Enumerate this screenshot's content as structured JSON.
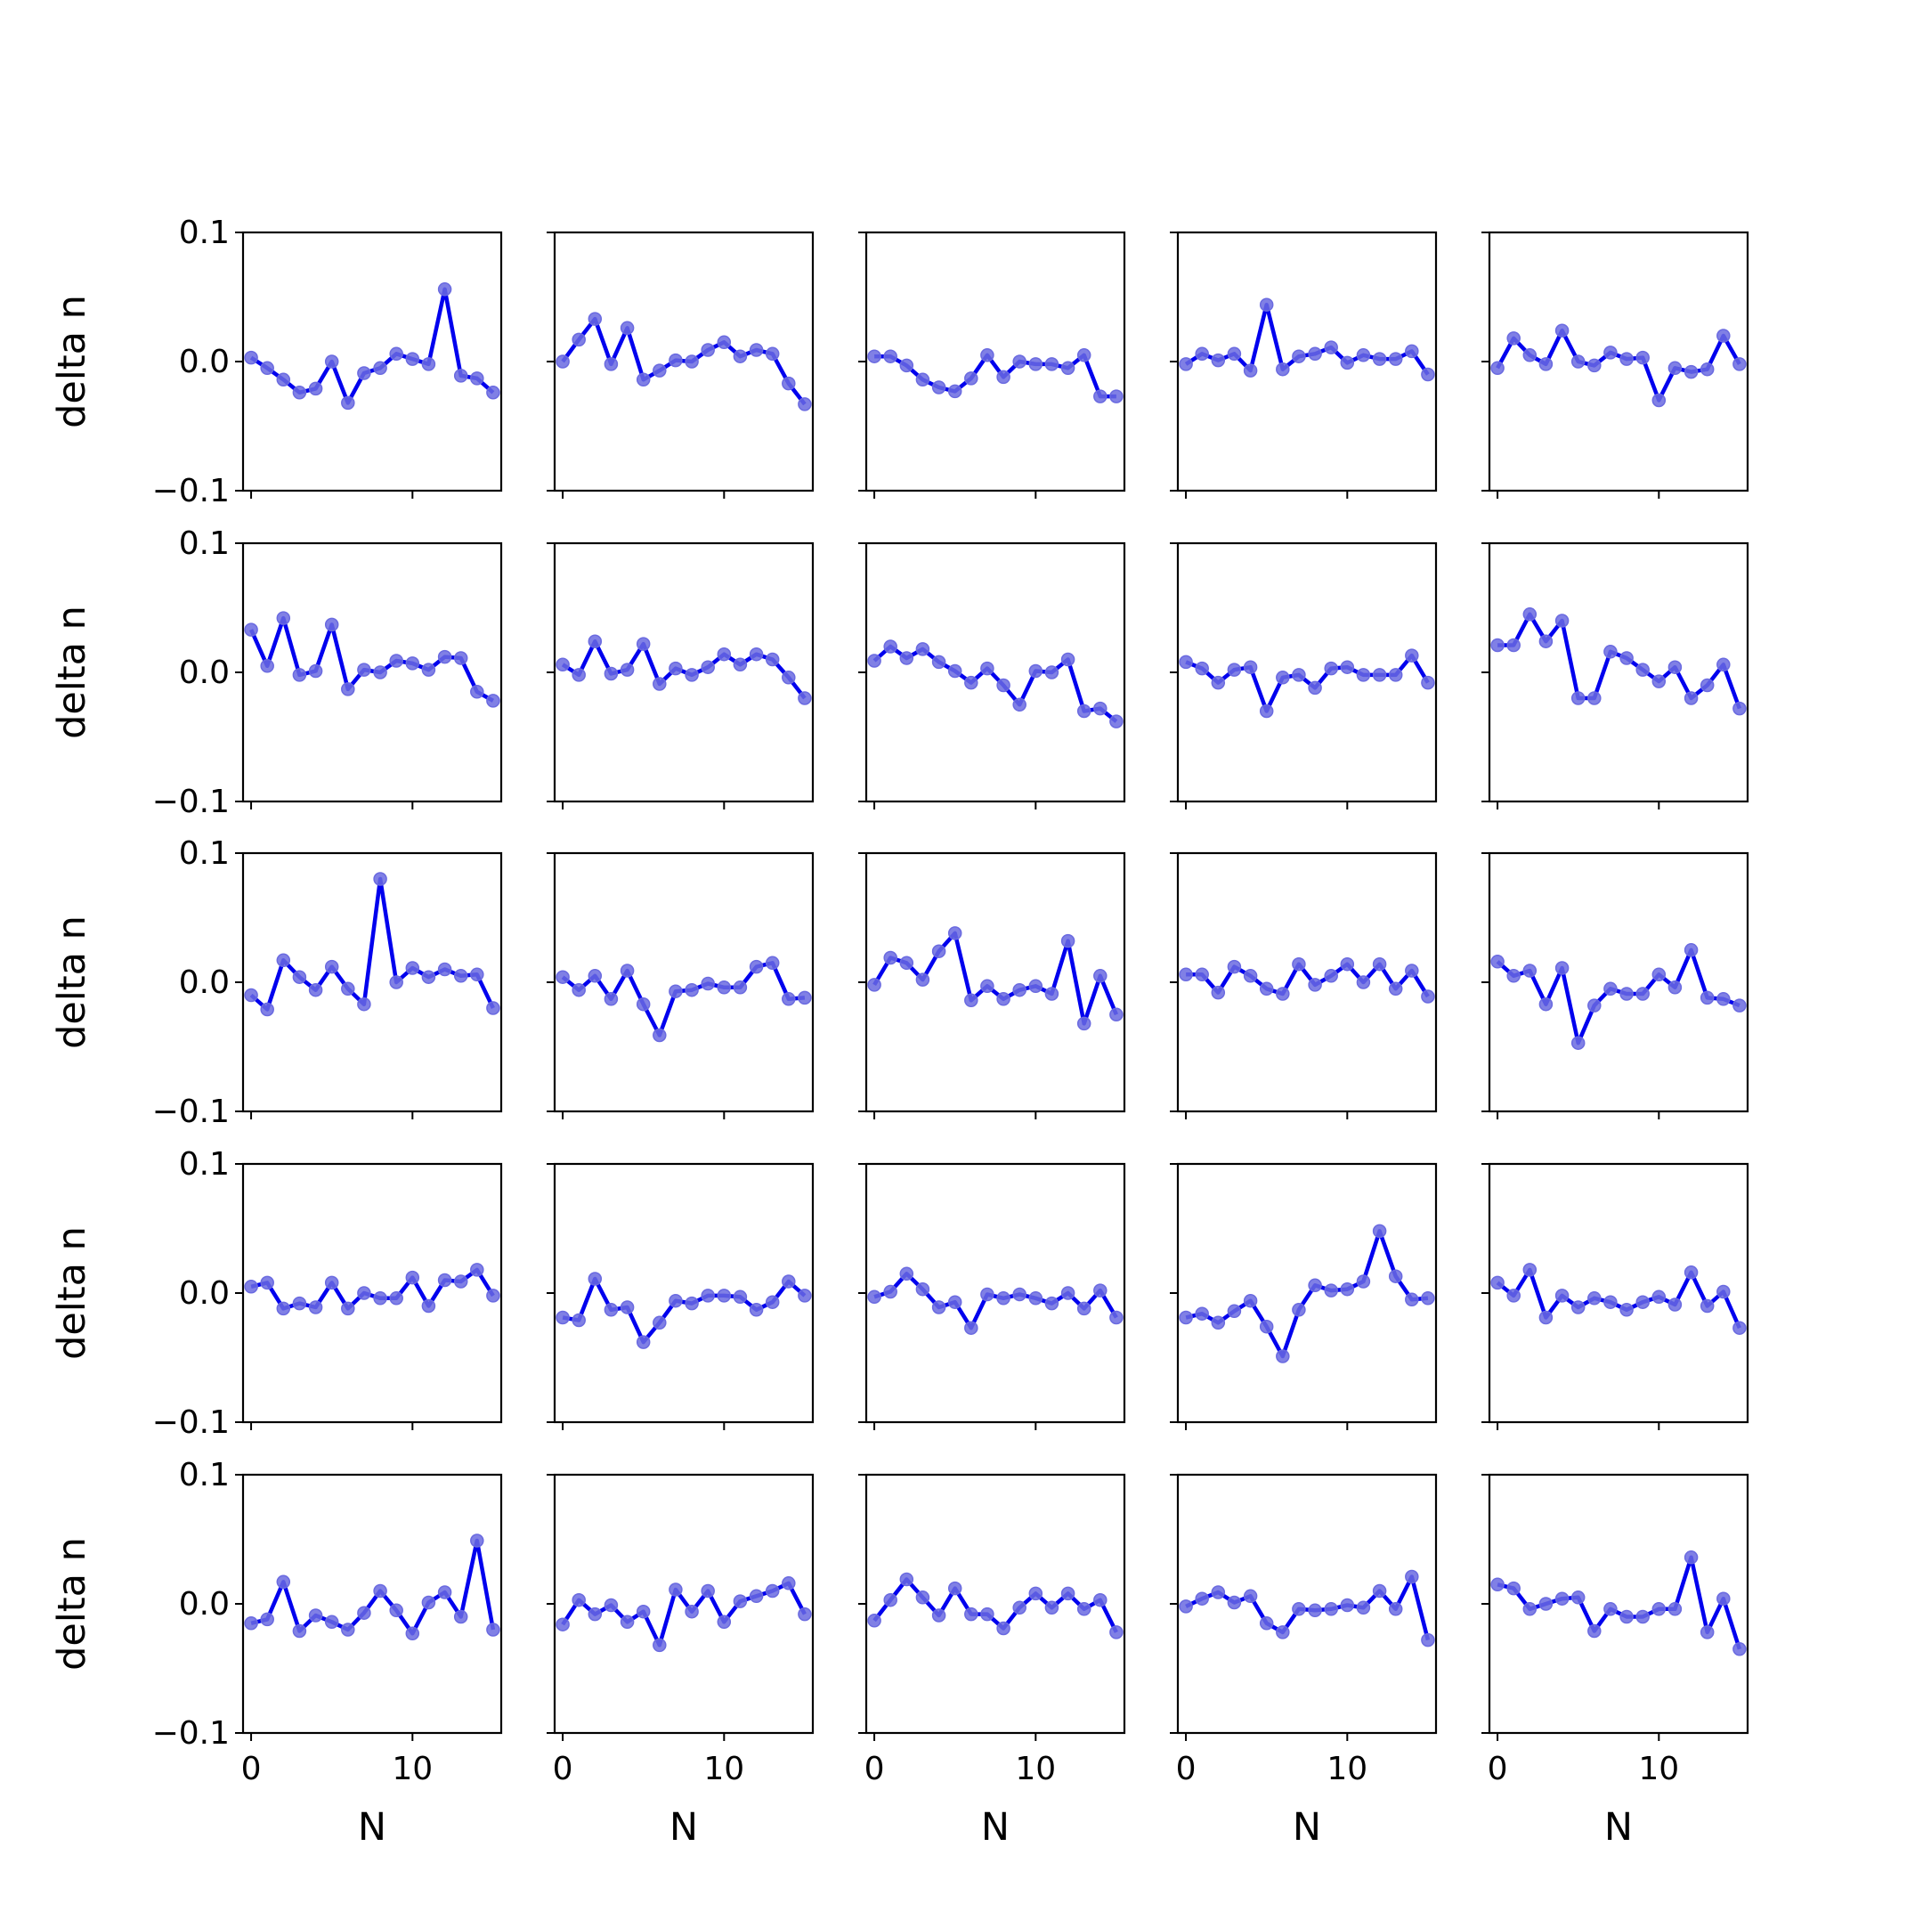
{
  "chart_data": {
    "type": "line",
    "layout": "5x5 grid of small multiples",
    "xlabel": "N",
    "ylabel": "delta n",
    "ylim": [
      -0.1,
      0.1
    ],
    "yticks": [
      -0.1,
      0.0,
      0.1
    ],
    "ytick_labels": [
      "−0.1",
      "0.0",
      "0.1"
    ],
    "xlim": [
      -0.5,
      15.5
    ],
    "xticks": [
      0,
      10
    ],
    "xtick_labels": [
      "0",
      "10"
    ],
    "x": [
      0,
      1,
      2,
      3,
      4,
      5,
      6,
      7,
      8,
      9,
      10,
      11,
      12,
      13,
      14,
      15
    ],
    "grid": false,
    "legend": "none",
    "colors": {
      "line": "#0000ee",
      "marker": "#6a6ae0"
    },
    "panels": [
      [
        0.003,
        -0.005,
        -0.014,
        -0.024,
        -0.021,
        0.0,
        -0.032,
        -0.009,
        -0.005,
        0.006,
        0.002,
        -0.002,
        0.056,
        -0.011,
        -0.013,
        -0.024
      ],
      [
        0.0,
        0.017,
        0.033,
        -0.002,
        0.026,
        -0.014,
        -0.007,
        0.001,
        0.0,
        0.009,
        0.015,
        0.004,
        0.009,
        0.006,
        -0.017,
        -0.033
      ],
      [
        0.004,
        0.004,
        -0.003,
        -0.014,
        -0.02,
        -0.023,
        -0.013,
        0.005,
        -0.012,
        0.0,
        -0.002,
        -0.002,
        -0.005,
        0.005,
        -0.027,
        -0.027
      ],
      [
        -0.002,
        0.006,
        0.001,
        0.006,
        -0.007,
        0.044,
        -0.006,
        0.004,
        0.006,
        0.011,
        -0.001,
        0.005,
        0.002,
        0.002,
        0.008,
        -0.01
      ],
      [
        -0.005,
        0.018,
        0.005,
        -0.002,
        0.024,
        0.0,
        -0.003,
        0.007,
        0.002,
        0.003,
        -0.03,
        -0.005,
        -0.008,
        -0.006,
        0.02,
        -0.002
      ],
      [
        0.033,
        0.005,
        0.042,
        -0.002,
        0.001,
        0.037,
        -0.013,
        0.002,
        0.0,
        0.009,
        0.007,
        0.002,
        0.012,
        0.011,
        -0.015,
        -0.022
      ],
      [
        0.006,
        -0.002,
        0.024,
        -0.001,
        0.002,
        0.022,
        -0.009,
        0.003,
        -0.002,
        0.004,
        0.014,
        0.006,
        0.014,
        0.01,
        -0.004,
        -0.02
      ],
      [
        0.009,
        0.02,
        0.011,
        0.018,
        0.008,
        0.001,
        -0.008,
        0.003,
        -0.01,
        -0.025,
        0.001,
        0.0,
        0.01,
        -0.03,
        -0.028,
        -0.038
      ],
      [
        0.008,
        0.003,
        -0.008,
        0.002,
        0.004,
        -0.03,
        -0.004,
        -0.002,
        -0.012,
        0.003,
        0.004,
        -0.002,
        -0.002,
        -0.002,
        0.013,
        -0.008
      ],
      [
        0.021,
        0.021,
        0.045,
        0.024,
        0.04,
        -0.02,
        -0.02,
        0.016,
        0.011,
        0.002,
        -0.007,
        0.004,
        -0.02,
        -0.01,
        0.006,
        -0.028
      ],
      [
        -0.01,
        -0.021,
        0.017,
        0.004,
        -0.006,
        0.012,
        -0.005,
        -0.017,
        0.08,
        0.0,
        0.011,
        0.004,
        0.01,
        0.005,
        0.006,
        -0.02
      ],
      [
        0.004,
        -0.006,
        0.005,
        -0.013,
        0.009,
        -0.017,
        -0.041,
        -0.007,
        -0.006,
        -0.001,
        -0.004,
        -0.004,
        0.012,
        0.015,
        -0.013,
        -0.012
      ],
      [
        -0.002,
        0.019,
        0.015,
        0.002,
        0.024,
        0.038,
        -0.014,
        -0.003,
        -0.013,
        -0.006,
        -0.003,
        -0.009,
        0.032,
        -0.032,
        0.005,
        -0.025
      ],
      [
        0.006,
        0.006,
        -0.008,
        0.012,
        0.005,
        -0.005,
        -0.009,
        0.014,
        -0.002,
        0.005,
        0.014,
        0.0,
        0.014,
        -0.005,
        0.009,
        -0.011
      ],
      [
        0.016,
        0.005,
        0.009,
        -0.017,
        0.011,
        -0.047,
        -0.018,
        -0.005,
        -0.009,
        -0.009,
        0.006,
        -0.004,
        0.025,
        -0.012,
        -0.013,
        -0.018
      ],
      [
        0.005,
        0.008,
        -0.012,
        -0.008,
        -0.011,
        0.008,
        -0.012,
        0.0,
        -0.004,
        -0.004,
        0.012,
        -0.01,
        0.01,
        0.009,
        0.018,
        -0.002
      ],
      [
        -0.019,
        -0.021,
        0.011,
        -0.013,
        -0.011,
        -0.038,
        -0.023,
        -0.006,
        -0.008,
        -0.002,
        -0.002,
        -0.003,
        -0.013,
        -0.007,
        0.009,
        -0.002
      ],
      [
        -0.003,
        0.001,
        0.015,
        0.003,
        -0.011,
        -0.007,
        -0.027,
        -0.001,
        -0.004,
        -0.001,
        -0.004,
        -0.008,
        0.0,
        -0.012,
        0.002,
        -0.019
      ],
      [
        -0.019,
        -0.016,
        -0.023,
        -0.014,
        -0.006,
        -0.026,
        -0.049,
        -0.013,
        0.006,
        0.002,
        0.003,
        0.009,
        0.048,
        0.013,
        -0.005,
        -0.004
      ],
      [
        0.008,
        -0.002,
        0.018,
        -0.019,
        -0.002,
        -0.011,
        -0.004,
        -0.007,
        -0.013,
        -0.007,
        -0.003,
        -0.009,
        0.016,
        -0.01,
        0.001,
        -0.027
      ],
      [
        -0.015,
        -0.012,
        0.017,
        -0.021,
        -0.009,
        -0.014,
        -0.02,
        -0.007,
        0.01,
        -0.005,
        -0.023,
        0.001,
        0.009,
        -0.01,
        0.049,
        -0.02
      ],
      [
        -0.016,
        0.003,
        -0.008,
        -0.001,
        -0.014,
        -0.006,
        -0.032,
        0.011,
        -0.006,
        0.01,
        -0.014,
        0.002,
        0.006,
        0.01,
        0.016,
        -0.008
      ],
      [
        -0.013,
        0.003,
        0.019,
        0.005,
        -0.009,
        0.012,
        -0.008,
        -0.008,
        -0.019,
        -0.003,
        0.008,
        -0.003,
        0.008,
        -0.004,
        0.003,
        -0.022
      ],
      [
        -0.002,
        0.004,
        0.009,
        0.001,
        0.006,
        -0.015,
        -0.022,
        -0.004,
        -0.005,
        -0.004,
        -0.001,
        -0.003,
        0.01,
        -0.004,
        0.021,
        -0.028
      ],
      [
        0.015,
        0.012,
        -0.004,
        0.0,
        0.004,
        0.005,
        -0.021,
        -0.004,
        -0.01,
        -0.01,
        -0.004,
        -0.004,
        0.036,
        -0.022,
        0.004,
        -0.035
      ]
    ]
  }
}
